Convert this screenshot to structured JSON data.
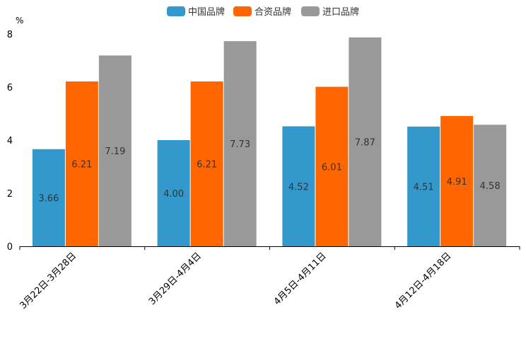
{
  "chart_data": {
    "type": "bar",
    "title": "",
    "xlabel": "",
    "ylabel": "%",
    "ylim": [
      0,
      8
    ],
    "yticks": [
      0,
      2,
      4,
      6,
      8
    ],
    "grid": false,
    "legend_position": "top-center",
    "categories": [
      "3月22日-3月28日",
      "3月29日-4月4日",
      "4月5日-4月11日",
      "4月12日-4月18日"
    ],
    "series": [
      {
        "name": "中国品牌",
        "color": "#3399CC",
        "values": [
          3.66,
          4.0,
          4.52,
          4.51
        ],
        "labels": [
          "3.66",
          "4.00",
          "4.52",
          "4.51"
        ]
      },
      {
        "name": "合资品牌",
        "color": "#FF6600",
        "values": [
          6.21,
          6.21,
          6.01,
          4.91
        ],
        "labels": [
          "6.21",
          "6.21",
          "6.01",
          "4.91"
        ]
      },
      {
        "name": "进口品牌",
        "color": "#999999",
        "values": [
          7.19,
          7.73,
          7.87,
          4.58
        ],
        "labels": [
          "7.19",
          "7.73",
          "7.87",
          "4.58"
        ]
      }
    ]
  }
}
